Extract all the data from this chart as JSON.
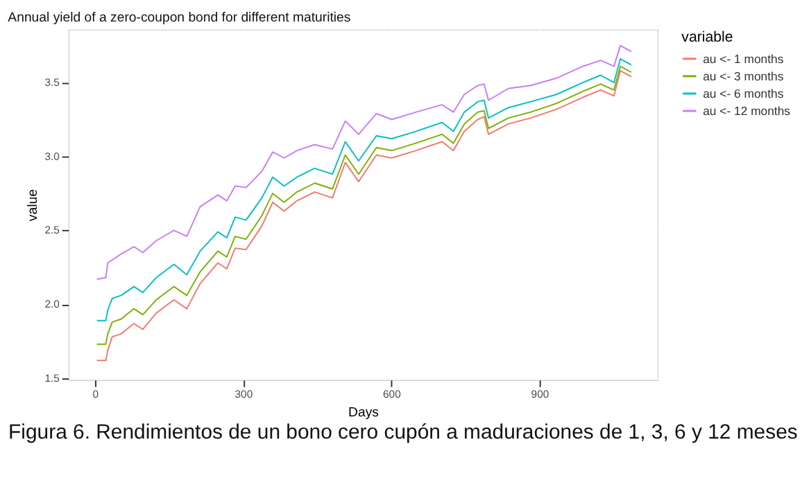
{
  "chart_data": {
    "type": "line",
    "title": "Annual yield of a zero-coupon bond for different maturities",
    "xlabel": "Days",
    "ylabel": "value",
    "legend_title": "variable",
    "legend": "right",
    "grid": true,
    "x": [
      4,
      22,
      26,
      35,
      53,
      79,
      97,
      124,
      160,
      186,
      213,
      249,
      267,
      284,
      306,
      338,
      360,
      383,
      409,
      445,
      481,
      507,
      534,
      570,
      601,
      650,
      703,
      726,
      748,
      775,
      788,
      797,
      837,
      882,
      935,
      988,
      1024,
      1051,
      1064,
      1086
    ],
    "series": [
      {
        "name": "au <- 1 months",
        "color": "#f8766d",
        "values": [
          1.62,
          1.62,
          1.69,
          1.78,
          1.8,
          1.87,
          1.83,
          1.94,
          2.03,
          1.97,
          2.14,
          2.28,
          2.24,
          2.38,
          2.37,
          2.53,
          2.69,
          2.63,
          2.7,
          2.76,
          2.72,
          2.96,
          2.83,
          3.01,
          2.99,
          3.04,
          3.1,
          3.04,
          3.17,
          3.25,
          3.27,
          3.15,
          3.22,
          3.26,
          3.32,
          3.4,
          3.45,
          3.41,
          3.58,
          3.54
        ]
      },
      {
        "name": "au <- 3 months",
        "color": "#7cae00",
        "values": [
          1.73,
          1.73,
          1.8,
          1.88,
          1.9,
          1.97,
          1.93,
          2.03,
          2.12,
          2.06,
          2.22,
          2.36,
          2.32,
          2.46,
          2.44,
          2.6,
          2.75,
          2.69,
          2.76,
          2.82,
          2.78,
          3.01,
          2.88,
          3.06,
          3.04,
          3.09,
          3.15,
          3.09,
          3.22,
          3.3,
          3.31,
          3.19,
          3.26,
          3.3,
          3.36,
          3.44,
          3.49,
          3.45,
          3.61,
          3.57
        ]
      },
      {
        "name": "au <- 6 months",
        "color": "#00bfc4",
        "values": [
          1.89,
          1.89,
          1.96,
          2.04,
          2.06,
          2.12,
          2.08,
          2.18,
          2.27,
          2.2,
          2.36,
          2.49,
          2.45,
          2.59,
          2.57,
          2.72,
          2.86,
          2.8,
          2.86,
          2.92,
          2.88,
          3.1,
          2.97,
          3.14,
          3.12,
          3.17,
          3.23,
          3.17,
          3.3,
          3.37,
          3.38,
          3.26,
          3.33,
          3.37,
          3.42,
          3.5,
          3.55,
          3.5,
          3.66,
          3.62
        ]
      },
      {
        "name": "au <- 12 months",
        "color": "#c77cff",
        "values": [
          2.17,
          2.18,
          2.28,
          2.3,
          2.34,
          2.39,
          2.35,
          2.43,
          2.5,
          2.46,
          2.66,
          2.74,
          2.7,
          2.8,
          2.79,
          2.9,
          3.03,
          2.99,
          3.04,
          3.08,
          3.05,
          3.24,
          3.15,
          3.29,
          3.25,
          3.3,
          3.35,
          3.3,
          3.42,
          3.48,
          3.49,
          3.38,
          3.46,
          3.48,
          3.53,
          3.61,
          3.65,
          3.61,
          3.75,
          3.71
        ]
      }
    ],
    "xlim": [
      -54,
      1139
    ],
    "xticks": [
      0,
      300,
      600,
      900
    ],
    "ylim": [
      1.49,
      3.86
    ],
    "yticks": [
      1.5,
      {
        "value": 2,
        "label": "2.0"
      },
      2.5,
      {
        "value": 3,
        "label": "3.0"
      },
      3.5
    ],
    "annotations": [
      "Figura 6. Rendimientos de un bono cero cupón a maduraciones de 1, 3, 6 y 12 meses"
    ]
  }
}
